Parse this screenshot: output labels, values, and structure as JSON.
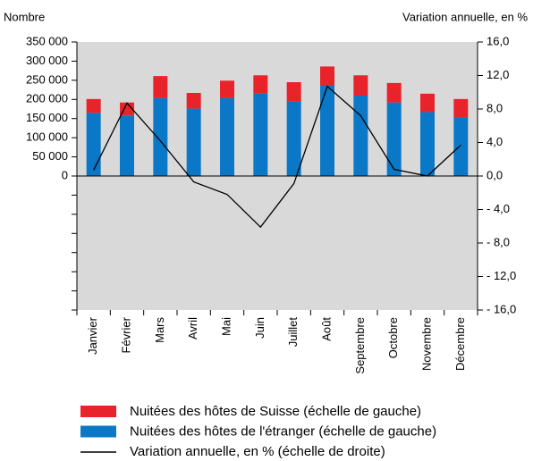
{
  "chart_data": {
    "type": "bar",
    "left_axis_label": "Nombre",
    "right_axis_label": "Variation annuelle, en %",
    "categories": [
      "Janvier",
      "Février",
      "Mars",
      "Avril",
      "Mai",
      "Juin",
      "Juillet",
      "Août",
      "Septembre",
      "Octobre",
      "Novembre",
      "Décembre"
    ],
    "series": [
      {
        "name": "Nuitées des hôtes de Suisse (échelle de gauche)",
        "color": "#e8232a",
        "type": "bar",
        "values": [
          36000,
          34000,
          57000,
          41000,
          45000,
          48000,
          51000,
          48000,
          53000,
          51000,
          48000,
          48000
        ]
      },
      {
        "name": "Nuitées des hôtes de l'étranger (échelle de gauche)",
        "color": "#0a78c6",
        "type": "bar",
        "values": [
          165000,
          158000,
          204000,
          176000,
          204000,
          215000,
          194000,
          238000,
          210000,
          192000,
          167000,
          153000
        ]
      },
      {
        "name": "Variation annuelle, en % (échelle de droite)",
        "color": "#000000",
        "type": "line",
        "axis": "y2",
        "values": [
          0.7,
          8.7,
          4.2,
          -0.7,
          -2.2,
          -6.1,
          -0.9,
          10.7,
          7.2,
          0.8,
          0.0,
          3.7
        ]
      }
    ],
    "ylim": [
      -350000,
      350000
    ],
    "yticks": [
      0,
      {
        "value": 50000,
        "label": "50 000"
      },
      {
        "value": 100000,
        "label": "100 000"
      },
      {
        "value": 150000,
        "label": "150 000"
      },
      {
        "value": 200000,
        "label": "200 000"
      },
      {
        "value": 250000,
        "label": "250 000"
      },
      {
        "value": 300000,
        "label": "300 000"
      },
      {
        "value": 350000,
        "label": "350 000"
      }
    ],
    "yticks_minor": [
      -50000,
      -100000,
      -150000,
      -200000,
      -250000,
      -300000,
      -350000
    ],
    "y2lim": [
      -16,
      16
    ],
    "y2ticks": [
      {
        "value": 16,
        "label": "16,0"
      },
      {
        "value": 12,
        "label": "12,0"
      },
      {
        "value": 8,
        "label": "8,0"
      },
      {
        "value": 4,
        "label": "4,0"
      },
      {
        "value": 0,
        "label": "0,0"
      },
      {
        "value": -4,
        "label": "- 4,0"
      },
      {
        "value": -8,
        "label": "- 8,0"
      },
      {
        "value": -12,
        "label": "- 12,0"
      },
      {
        "value": -16,
        "label": "- 16,0"
      }
    ],
    "plot_background": "#d9d9d9"
  }
}
